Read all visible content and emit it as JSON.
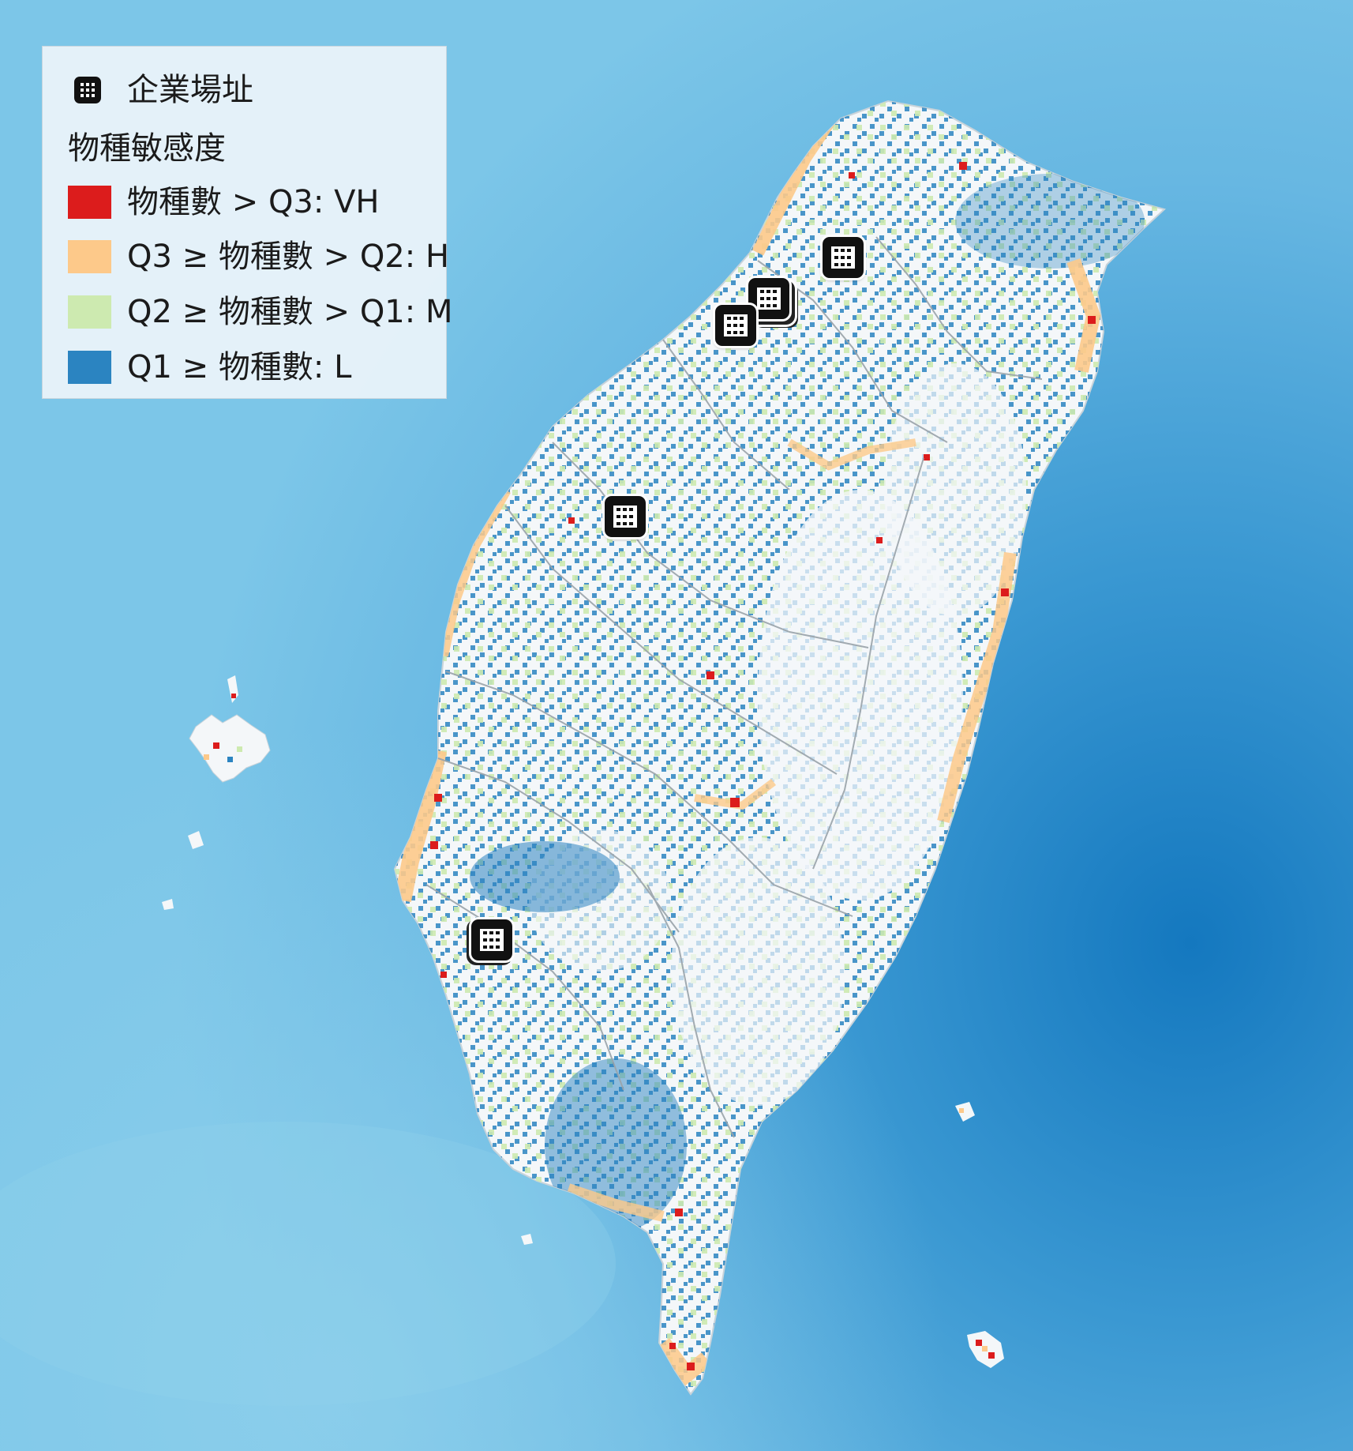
{
  "map": {
    "colors": {
      "sea_light": "#7cc6e8",
      "sea_mid": "#5bb0de",
      "sea_deep": "#1478bf",
      "land": "#f4f7f9",
      "border": "#9aa3aa"
    },
    "markers": [
      {
        "name": "site-marker-taipei",
        "stacked": "none"
      },
      {
        "name": "site-marker-taoyuan",
        "stacked": "stack2"
      },
      {
        "name": "site-marker-taoyuan-coast",
        "stacked": "none"
      },
      {
        "name": "site-marker-hsinchu",
        "stacked": "none"
      },
      {
        "name": "site-marker-tainan",
        "stacked": "stack1"
      }
    ]
  },
  "legend": {
    "site_label": "企業場址",
    "site_icon": "building-icon",
    "title": "物種敏感度",
    "classes": [
      {
        "label": "物種數 > Q3: VH",
        "color": "#dc1c1c"
      },
      {
        "label": "Q3 ≥ 物種數 > Q2: H",
        "color": "#fdc98a"
      },
      {
        "label": "Q2 ≥ 物種數 > Q1: M",
        "color": "#cdeab0"
      },
      {
        "label": "Q1 ≥ 物種數: L",
        "color": "#2b84c1"
      }
    ]
  }
}
